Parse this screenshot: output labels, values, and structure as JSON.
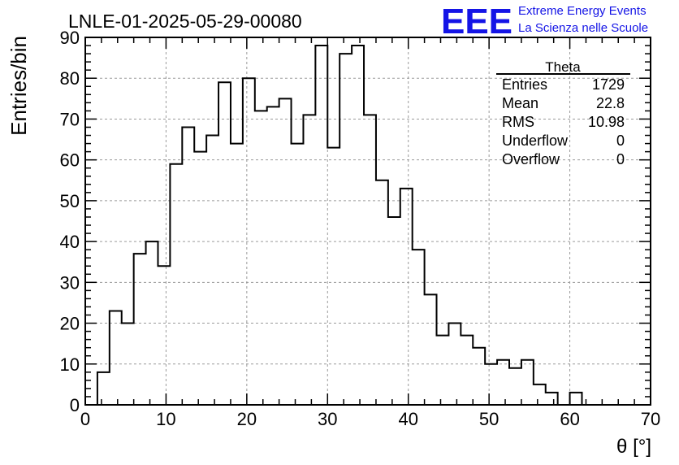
{
  "title": "LNLE-01-2025-05-29-00080",
  "logo": {
    "mark": "EEE",
    "line1": "Extreme Energy Events",
    "line2": "La Scienza nelle Scuole",
    "color": "#1414e6"
  },
  "stats": {
    "name": "Theta",
    "rows": [
      {
        "label": "Entries",
        "value": "1729"
      },
      {
        "label": "Mean",
        "value": "22.8"
      },
      {
        "label": "RMS",
        "value": "10.98"
      },
      {
        "label": "Underflow",
        "value": "0"
      },
      {
        "label": "Overflow",
        "value": "0"
      }
    ]
  },
  "chart_data": {
    "type": "bar",
    "style": "step-histogram",
    "xlabel": "θ [°]",
    "ylabel": "Entries/bin",
    "xlim": [
      0,
      70
    ],
    "ylim": [
      0,
      90
    ],
    "bin_width": 1.5,
    "x_ticks": [
      0,
      10,
      20,
      30,
      40,
      50,
      60,
      70
    ],
    "y_ticks": [
      0,
      10,
      20,
      30,
      40,
      50,
      60,
      70,
      80,
      90
    ],
    "grid": true,
    "bin_edges_start": 1.5,
    "counts": [
      8,
      23,
      20,
      37,
      40,
      34,
      59,
      68,
      62,
      66,
      79,
      64,
      80,
      72,
      73,
      75,
      64,
      71,
      88,
      63,
      86,
      88,
      71,
      55,
      46,
      53,
      38,
      27,
      17,
      20,
      17,
      14,
      10,
      11,
      9,
      11,
      5,
      3,
      0,
      3
    ]
  }
}
